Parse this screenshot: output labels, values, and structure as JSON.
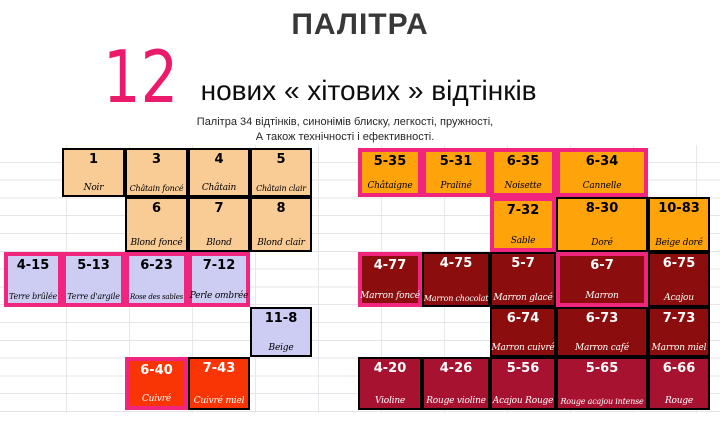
{
  "slide": {
    "title": "ПАЛІТРА",
    "hero_number": "12",
    "headline": "нових « хітових » відтінків",
    "subtitle_line1": "Палітра 34 відтінків, синонімів блиску, легкості, пружності,",
    "subtitle_line2": "А також технічності і ефективності."
  },
  "colors": {
    "title_gray": "#383838",
    "hero_number_pink": "#ec1a6b",
    "accent_pink_border": "#f0257e",
    "black_border": "#000000",
    "palette": {
      "peach": {
        "bg": "#f9cc96",
        "text": "#000000"
      },
      "orange": {
        "bg": "#ffa30a",
        "text": "#000000"
      },
      "lavender": {
        "bg": "#cdcdf4",
        "text": "#000000"
      },
      "maroon": {
        "bg": "#8c0d0d",
        "text": "#ffffff"
      },
      "crimson": {
        "bg": "#a81231",
        "text": "#ffffff"
      },
      "copper": {
        "bg": "#fa3505",
        "text": "#ffffff"
      }
    }
  },
  "palette_table": {
    "total_shades": 34,
    "new_shades_highlighted": 12,
    "blocks": [
      {
        "name": "left",
        "cells": [
          {
            "code": "1",
            "name": "Noir",
            "color": "peach",
            "col": 1,
            "row": 0,
            "highlight": false
          },
          {
            "code": "3",
            "name": "Châtain foncé",
            "color": "peach",
            "col": 2,
            "row": 0,
            "highlight": false
          },
          {
            "code": "4",
            "name": "Châtain",
            "color": "peach",
            "col": 3,
            "row": 0,
            "highlight": false
          },
          {
            "code": "5",
            "name": "Châtain clair",
            "color": "peach",
            "col": 4,
            "row": 0,
            "highlight": false
          },
          {
            "code": "6",
            "name": "Blond foncé",
            "color": "peach",
            "col": 2,
            "row": 1,
            "highlight": false
          },
          {
            "code": "7",
            "name": "Blond",
            "color": "peach",
            "col": 3,
            "row": 1,
            "highlight": false
          },
          {
            "code": "8",
            "name": "Blond clair",
            "color": "peach",
            "col": 4,
            "row": 1,
            "highlight": false
          },
          {
            "code": "4-15",
            "name": "Terre brûlée",
            "color": "lavender",
            "col": 0,
            "row": 2,
            "highlight": true
          },
          {
            "code": "5-13",
            "name": "Terre d'argile",
            "color": "lavender",
            "col": 1,
            "row": 2,
            "highlight": true
          },
          {
            "code": "6-23",
            "name": "Rose des sables",
            "color": "lavender",
            "col": 2,
            "row": 2,
            "highlight": true
          },
          {
            "code": "7-12",
            "name": "Perle ombrée",
            "color": "lavender",
            "col": 3,
            "row": 2,
            "highlight": true
          },
          {
            "code": "11-8",
            "name": "Beige",
            "color": "lavender",
            "col": 4,
            "row": 3,
            "highlight": false
          },
          {
            "code": "6-40",
            "name": "Cuivré",
            "color": "copper",
            "col": 2,
            "row": 4,
            "highlight": true
          },
          {
            "code": "7-43",
            "name": "Cuivré miel",
            "color": "copper",
            "col": 3,
            "row": 4,
            "highlight": false
          }
        ]
      },
      {
        "name": "right",
        "cells": [
          {
            "code": "5-35",
            "name": "Châtaigne",
            "color": "orange",
            "col": 0,
            "row": 0,
            "highlight": true
          },
          {
            "code": "5-31",
            "name": "Praliné",
            "color": "orange",
            "col": 1,
            "row": 0,
            "highlight": true
          },
          {
            "code": "6-35",
            "name": "Noisette",
            "color": "orange",
            "col": 2,
            "row": 0,
            "highlight": true
          },
          {
            "code": "6-34",
            "name": "Cannelle",
            "color": "orange",
            "col": 3,
            "row": 0,
            "highlight": true
          },
          {
            "code": "7-32",
            "name": "Sable",
            "color": "orange",
            "col": 2,
            "row": 1,
            "highlight": true
          },
          {
            "code": "8-30",
            "name": "Doré",
            "color": "orange",
            "col": 3,
            "row": 1,
            "highlight": false
          },
          {
            "code": "10-83",
            "name": "Beige doré",
            "color": "orange",
            "col": 4,
            "row": 1,
            "highlight": false
          },
          {
            "code": "4-77",
            "name": "Marron foncé",
            "color": "maroon",
            "col": 0,
            "row": 2,
            "highlight": true
          },
          {
            "code": "4-75",
            "name": "Marron chocolat",
            "color": "maroon",
            "col": 1,
            "row": 2,
            "highlight": false
          },
          {
            "code": "5-7",
            "name": "Marron glacé",
            "color": "maroon",
            "col": 2,
            "row": 2,
            "highlight": false
          },
          {
            "code": "6-7",
            "name": "Marron",
            "color": "maroon",
            "col": 3,
            "row": 2,
            "highlight": true
          },
          {
            "code": "6-75",
            "name": "Acajou",
            "color": "maroon",
            "col": 4,
            "row": 2,
            "highlight": false
          },
          {
            "code": "6-74",
            "name": "Marron cuivré",
            "color": "maroon",
            "col": 2,
            "row": 3,
            "highlight": false
          },
          {
            "code": "6-73",
            "name": "Marron café",
            "color": "maroon",
            "col": 3,
            "row": 3,
            "highlight": false
          },
          {
            "code": "7-73",
            "name": "Marron miel",
            "color": "maroon",
            "col": 4,
            "row": 3,
            "highlight": false
          },
          {
            "code": "4-20",
            "name": "Violine",
            "color": "crimson",
            "col": 0,
            "row": 4,
            "highlight": false
          },
          {
            "code": "4-26",
            "name": "Rouge violine",
            "color": "crimson",
            "col": 1,
            "row": 4,
            "highlight": false
          },
          {
            "code": "5-56",
            "name": "Acajou Rouge",
            "color": "crimson",
            "col": 2,
            "row": 4,
            "highlight": false
          },
          {
            "code": "5-65",
            "name": "Rouge acajou intense",
            "color": "crimson",
            "col": 3,
            "row": 4,
            "highlight": false
          },
          {
            "code": "6-66",
            "name": "Rouge",
            "color": "crimson",
            "col": 4,
            "row": 4,
            "highlight": false
          }
        ]
      }
    ]
  }
}
